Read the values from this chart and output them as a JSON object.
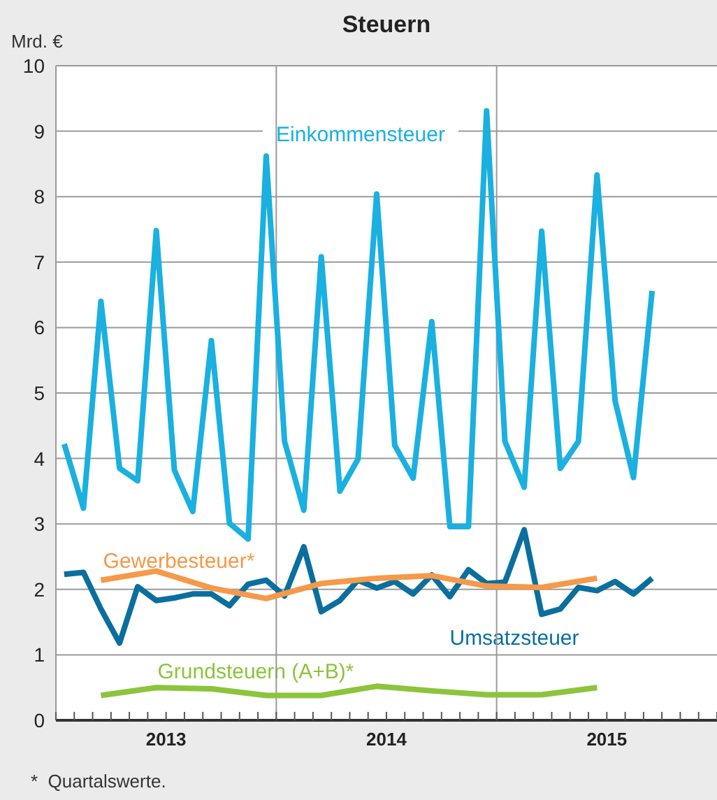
{
  "chart_data": {
    "type": "line",
    "title": "Steuern",
    "ylabel": "Mrd. €",
    "annotations": [
      "*  Quartalswerte."
    ],
    "ylim": [
      0,
      10
    ],
    "yticks": [
      0,
      1,
      2,
      3,
      4,
      5,
      6,
      7,
      8,
      9,
      10
    ],
    "xlim": [
      "2013-01-01",
      "2016-01-01"
    ],
    "xticks": [
      {
        "value": "2013-07-01",
        "label": "2013"
      },
      {
        "value": "2014-07-01",
        "label": "2014"
      },
      {
        "value": "2015-07-01",
        "label": "2015"
      }
    ],
    "ref_lines": [
      {
        "axis": "x",
        "value": "2014-01-01",
        "color": "#9a9a9a"
      },
      {
        "axis": "x",
        "value": "2015-01-01",
        "color": "#9a9a9a"
      }
    ],
    "grid": "y",
    "legend": false,
    "marker": "none",
    "line_style": "solid",
    "series": [
      {
        "name": "Einkommensteuer",
        "color": "#1ab0e0",
        "x": [
          "2013-01-15",
          "2013-02-15",
          "2013-03-15",
          "2013-04-15",
          "2013-05-15",
          "2013-06-15",
          "2013-07-15",
          "2013-08-15",
          "2013-09-15",
          "2013-10-15",
          "2013-11-15",
          "2013-12-15",
          "2014-01-15",
          "2014-02-15",
          "2014-03-15",
          "2014-04-15",
          "2014-05-15",
          "2014-06-15",
          "2014-07-15",
          "2014-08-15",
          "2014-09-15",
          "2014-10-15",
          "2014-11-15",
          "2014-12-15",
          "2015-01-15",
          "2015-02-15",
          "2015-03-15",
          "2015-04-15",
          "2015-05-15",
          "2015-06-15",
          "2015-07-15",
          "2015-08-15",
          "2015-09-15"
        ],
        "values": [
          4.22,
          3.24,
          6.4,
          3.85,
          3.66,
          7.48,
          3.82,
          3.19,
          5.8,
          3.01,
          2.77,
          8.62,
          4.26,
          3.21,
          7.08,
          3.5,
          3.99,
          8.04,
          4.2,
          3.7,
          6.09,
          2.96,
          2.96,
          9.31,
          4.26,
          3.56,
          7.47,
          3.85,
          4.26,
          8.33,
          4.88,
          3.71,
          6.56
        ]
      },
      {
        "name": "Umsatzsteuer",
        "color": "#0a6f9e",
        "x": [
          "2013-01-15",
          "2013-02-15",
          "2013-03-15",
          "2013-04-15",
          "2013-05-15",
          "2013-06-15",
          "2013-07-15",
          "2013-08-15",
          "2013-09-15",
          "2013-10-15",
          "2013-11-15",
          "2013-12-15",
          "2014-01-15",
          "2014-02-15",
          "2014-03-15",
          "2014-04-15",
          "2014-05-15",
          "2014-06-15",
          "2014-07-15",
          "2014-08-15",
          "2014-09-15",
          "2014-10-15",
          "2014-11-15",
          "2014-12-15",
          "2015-01-15",
          "2015-02-15",
          "2015-03-15",
          "2015-04-15",
          "2015-05-15",
          "2015-06-15",
          "2015-07-15",
          "2015-08-15",
          "2015-09-15"
        ],
        "values": [
          2.23,
          2.26,
          1.7,
          1.18,
          2.04,
          1.83,
          1.87,
          1.93,
          1.93,
          1.75,
          2.08,
          2.14,
          1.9,
          2.65,
          1.66,
          1.83,
          2.14,
          2.02,
          2.12,
          1.93,
          2.22,
          1.89,
          2.3,
          2.09,
          2.11,
          2.91,
          1.62,
          1.7,
          2.03,
          1.98,
          2.12,
          1.93,
          2.17
        ]
      },
      {
        "name": "Gewerbesteuer*",
        "color": "#f5994a",
        "x": [
          "2013-03-15",
          "2013-06-15",
          "2013-09-15",
          "2013-12-15",
          "2014-03-15",
          "2014-06-15",
          "2014-09-15",
          "2014-12-15",
          "2015-03-15",
          "2015-06-15"
        ],
        "values": [
          2.14,
          2.28,
          2.02,
          1.86,
          2.09,
          2.17,
          2.21,
          2.05,
          2.03,
          2.17
        ]
      },
      {
        "name": "Grundsteuern (A+B)*",
        "color": "#8cc43c",
        "x": [
          "2013-03-15",
          "2013-06-15",
          "2013-09-15",
          "2013-12-15",
          "2014-03-15",
          "2014-06-15",
          "2014-09-15",
          "2014-12-15",
          "2015-03-15",
          "2015-06-15"
        ],
        "values": [
          0.38,
          0.5,
          0.48,
          0.38,
          0.38,
          0.52,
          0.45,
          0.39,
          0.39,
          0.5
        ]
      }
    ]
  }
}
